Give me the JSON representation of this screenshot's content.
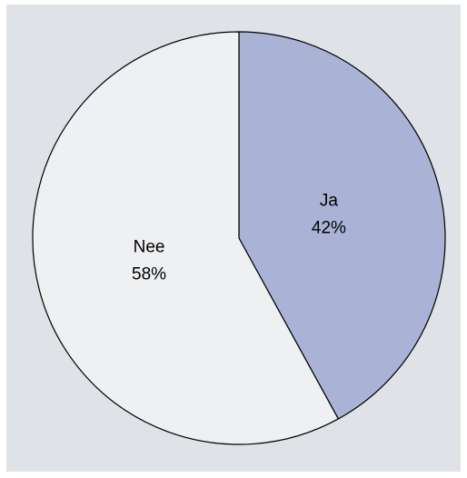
{
  "chart_data": {
    "type": "pie",
    "categories": [
      "Ja",
      "Nee"
    ],
    "values": [
      42,
      58
    ],
    "value_labels": [
      "42%",
      "58%"
    ],
    "colors": [
      "#aab3d6",
      "#eff0f2"
    ]
  }
}
